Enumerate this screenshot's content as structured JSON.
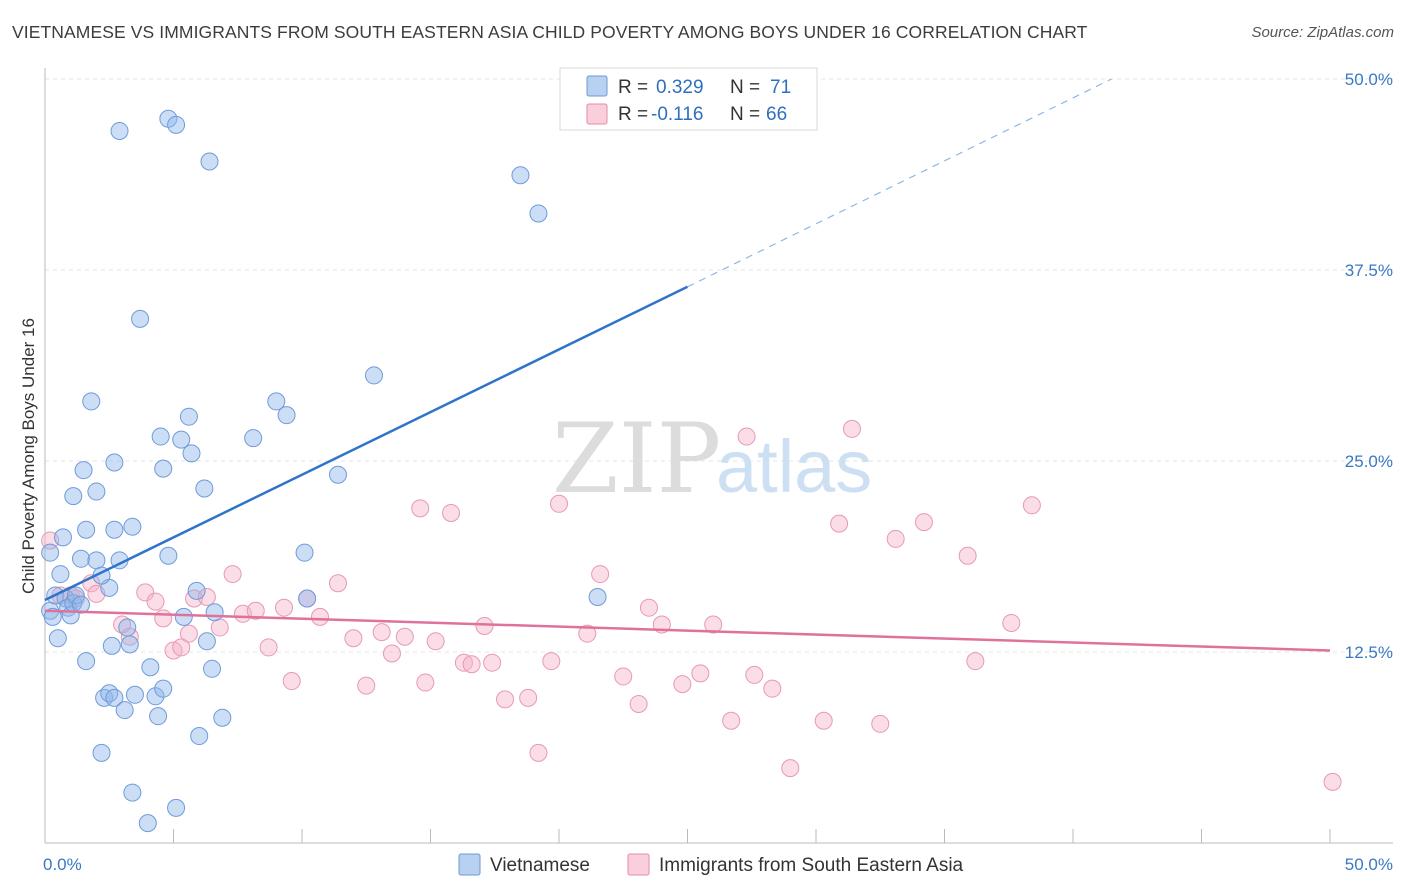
{
  "title": "VIETNAMESE VS IMMIGRANTS FROM SOUTH EASTERN ASIA CHILD POVERTY AMONG BOYS UNDER 16 CORRELATION CHART",
  "source": "Source: ZipAtlas.com",
  "watermark": {
    "zip": "ZIP",
    "atlas": "atlas"
  },
  "legend": {
    "r_label": "R =",
    "n_label": "N =",
    "series": [
      {
        "name": "Vietnamese",
        "r": "0.329",
        "n": "71",
        "color": "#8fb6ea",
        "stroke": "#6b9ad6"
      },
      {
        "name": "Immigrants from South Eastern Asia",
        "r": "-0.116",
        "n": "66",
        "color": "#f4b3c8",
        "stroke": "#e58aa8"
      }
    ]
  },
  "colors": {
    "blue_line": "#2f74c9",
    "pink_line": "#e0719c",
    "grid": "#e4e4e4",
    "axis_text": "#3a78c4"
  },
  "chart_data": {
    "type": "scatter",
    "title": "VIETNAMESE VS IMMIGRANTS FROM SOUTH EASTERN ASIA CHILD POVERTY AMONG BOYS UNDER 16 CORRELATION CHART",
    "xlabel": "",
    "ylabel": "Child Poverty Among Boys Under 16",
    "xlim": [
      0,
      52
    ],
    "ylim": [
      0,
      50.7
    ],
    "x_tick_labels": [
      "0.0%",
      "50.0%"
    ],
    "y_ticks": [
      12.5,
      25.0,
      37.5,
      50.0
    ],
    "y_tick_labels": [
      "12.5%",
      "25.0%",
      "37.5%",
      "50.0%"
    ],
    "series": [
      {
        "name": "Vietnamese",
        "trend": {
          "x0": 0,
          "y0": 15.9,
          "x1": 25,
          "y1": 36.4,
          "dashed_to_x": 41.5,
          "dashed_to_y": 50.0
        },
        "points": [
          [
            0.2,
            15.2
          ],
          [
            0.3,
            14.8
          ],
          [
            0.4,
            16.2
          ],
          [
            0.5,
            13.4
          ],
          [
            0.6,
            17.6
          ],
          [
            0.8,
            16.0
          ],
          [
            0.9,
            15.4
          ],
          [
            1.0,
            14.9
          ],
          [
            1.1,
            15.7
          ],
          [
            1.2,
            16.2
          ],
          [
            1.4,
            15.6
          ],
          [
            0.7,
            20.0
          ],
          [
            0.2,
            19.0
          ],
          [
            1.1,
            22.7
          ],
          [
            1.4,
            18.6
          ],
          [
            1.5,
            24.4
          ],
          [
            1.6,
            11.9
          ],
          [
            1.6,
            20.5
          ],
          [
            1.8,
            28.9
          ],
          [
            2.0,
            18.5
          ],
          [
            2.0,
            23.0
          ],
          [
            2.2,
            5.9
          ],
          [
            2.3,
            9.5
          ],
          [
            2.5,
            16.7
          ],
          [
            2.5,
            9.8
          ],
          [
            2.7,
            9.5
          ],
          [
            2.2,
            17.5
          ],
          [
            2.6,
            12.9
          ],
          [
            2.7,
            24.9
          ],
          [
            2.7,
            20.5
          ],
          [
            2.9,
            46.6
          ],
          [
            2.9,
            18.5
          ],
          [
            3.1,
            8.7
          ],
          [
            3.2,
            14.1
          ],
          [
            3.3,
            13.0
          ],
          [
            3.4,
            3.3
          ],
          [
            3.4,
            20.7
          ],
          [
            3.5,
            9.7
          ],
          [
            3.7,
            34.3
          ],
          [
            4.0,
            1.3
          ],
          [
            4.1,
            11.5
          ],
          [
            4.3,
            9.6
          ],
          [
            4.4,
            8.3
          ],
          [
            4.6,
            10.1
          ],
          [
            4.6,
            24.5
          ],
          [
            4.8,
            18.8
          ],
          [
            4.5,
            26.6
          ],
          [
            4.8,
            47.4
          ],
          [
            5.1,
            47.0
          ],
          [
            5.1,
            2.3
          ],
          [
            5.3,
            26.4
          ],
          [
            5.4,
            14.8
          ],
          [
            5.6,
            27.9
          ],
          [
            5.7,
            25.5
          ],
          [
            5.9,
            16.5
          ],
          [
            6.0,
            7.0
          ],
          [
            6.2,
            23.2
          ],
          [
            6.3,
            13.2
          ],
          [
            6.4,
            44.6
          ],
          [
            6.5,
            11.4
          ],
          [
            6.6,
            15.1
          ],
          [
            6.9,
            8.2
          ],
          [
            8.1,
            26.5
          ],
          [
            9.0,
            28.9
          ],
          [
            9.4,
            28.0
          ],
          [
            10.1,
            19.0
          ],
          [
            10.2,
            16.0
          ],
          [
            11.4,
            24.1
          ],
          [
            12.8,
            30.6
          ],
          [
            18.5,
            43.7
          ],
          [
            19.2,
            41.2
          ],
          [
            21.5,
            16.1
          ]
        ]
      },
      {
        "name": "Immigrants from South Eastern Asia",
        "trend": {
          "x0": 0,
          "y0": 15.2,
          "x1": 50,
          "y1": 12.6
        },
        "points": [
          [
            0.2,
            19.8
          ],
          [
            0.6,
            16.2
          ],
          [
            1.0,
            16.2
          ],
          [
            1.2,
            16.0
          ],
          [
            1.8,
            17.0
          ],
          [
            2.0,
            16.3
          ],
          [
            3.0,
            14.3
          ],
          [
            3.3,
            13.5
          ],
          [
            3.9,
            16.4
          ],
          [
            4.3,
            15.8
          ],
          [
            4.6,
            14.7
          ],
          [
            5.0,
            12.6
          ],
          [
            5.3,
            12.8
          ],
          [
            5.6,
            13.7
          ],
          [
            5.8,
            16.0
          ],
          [
            6.3,
            16.1
          ],
          [
            6.8,
            14.1
          ],
          [
            7.3,
            17.6
          ],
          [
            7.7,
            15.0
          ],
          [
            8.2,
            15.2
          ],
          [
            8.7,
            12.8
          ],
          [
            9.3,
            15.4
          ],
          [
            9.6,
            10.6
          ],
          [
            10.2,
            16.0
          ],
          [
            10.7,
            14.8
          ],
          [
            11.4,
            17.0
          ],
          [
            12.0,
            13.4
          ],
          [
            12.5,
            10.3
          ],
          [
            13.1,
            13.8
          ],
          [
            13.5,
            12.4
          ],
          [
            14.0,
            13.5
          ],
          [
            14.6,
            21.9
          ],
          [
            14.8,
            10.5
          ],
          [
            15.2,
            13.2
          ],
          [
            15.8,
            21.6
          ],
          [
            16.3,
            11.8
          ],
          [
            16.6,
            11.7
          ],
          [
            17.1,
            14.2
          ],
          [
            17.4,
            11.8
          ],
          [
            17.9,
            9.4
          ],
          [
            18.8,
            9.5
          ],
          [
            19.2,
            5.9
          ],
          [
            19.7,
            11.9
          ],
          [
            20.0,
            22.2
          ],
          [
            21.1,
            13.7
          ],
          [
            21.6,
            17.6
          ],
          [
            22.5,
            10.9
          ],
          [
            23.1,
            9.1
          ],
          [
            23.5,
            15.4
          ],
          [
            24.0,
            14.3
          ],
          [
            24.8,
            10.4
          ],
          [
            25.5,
            11.1
          ],
          [
            26.0,
            14.3
          ],
          [
            26.7,
            8.0
          ],
          [
            27.3,
            26.6
          ],
          [
            27.6,
            11.0
          ],
          [
            28.3,
            10.1
          ],
          [
            29.0,
            4.9
          ],
          [
            30.3,
            8.0
          ],
          [
            30.9,
            20.9
          ],
          [
            31.4,
            27.1
          ],
          [
            32.5,
            7.8
          ],
          [
            33.1,
            19.9
          ],
          [
            34.2,
            21.0
          ],
          [
            35.9,
            18.8
          ],
          [
            36.2,
            11.9
          ],
          [
            37.6,
            14.4
          ],
          [
            38.4,
            22.1
          ],
          [
            50.1,
            4.0
          ]
        ]
      }
    ]
  }
}
